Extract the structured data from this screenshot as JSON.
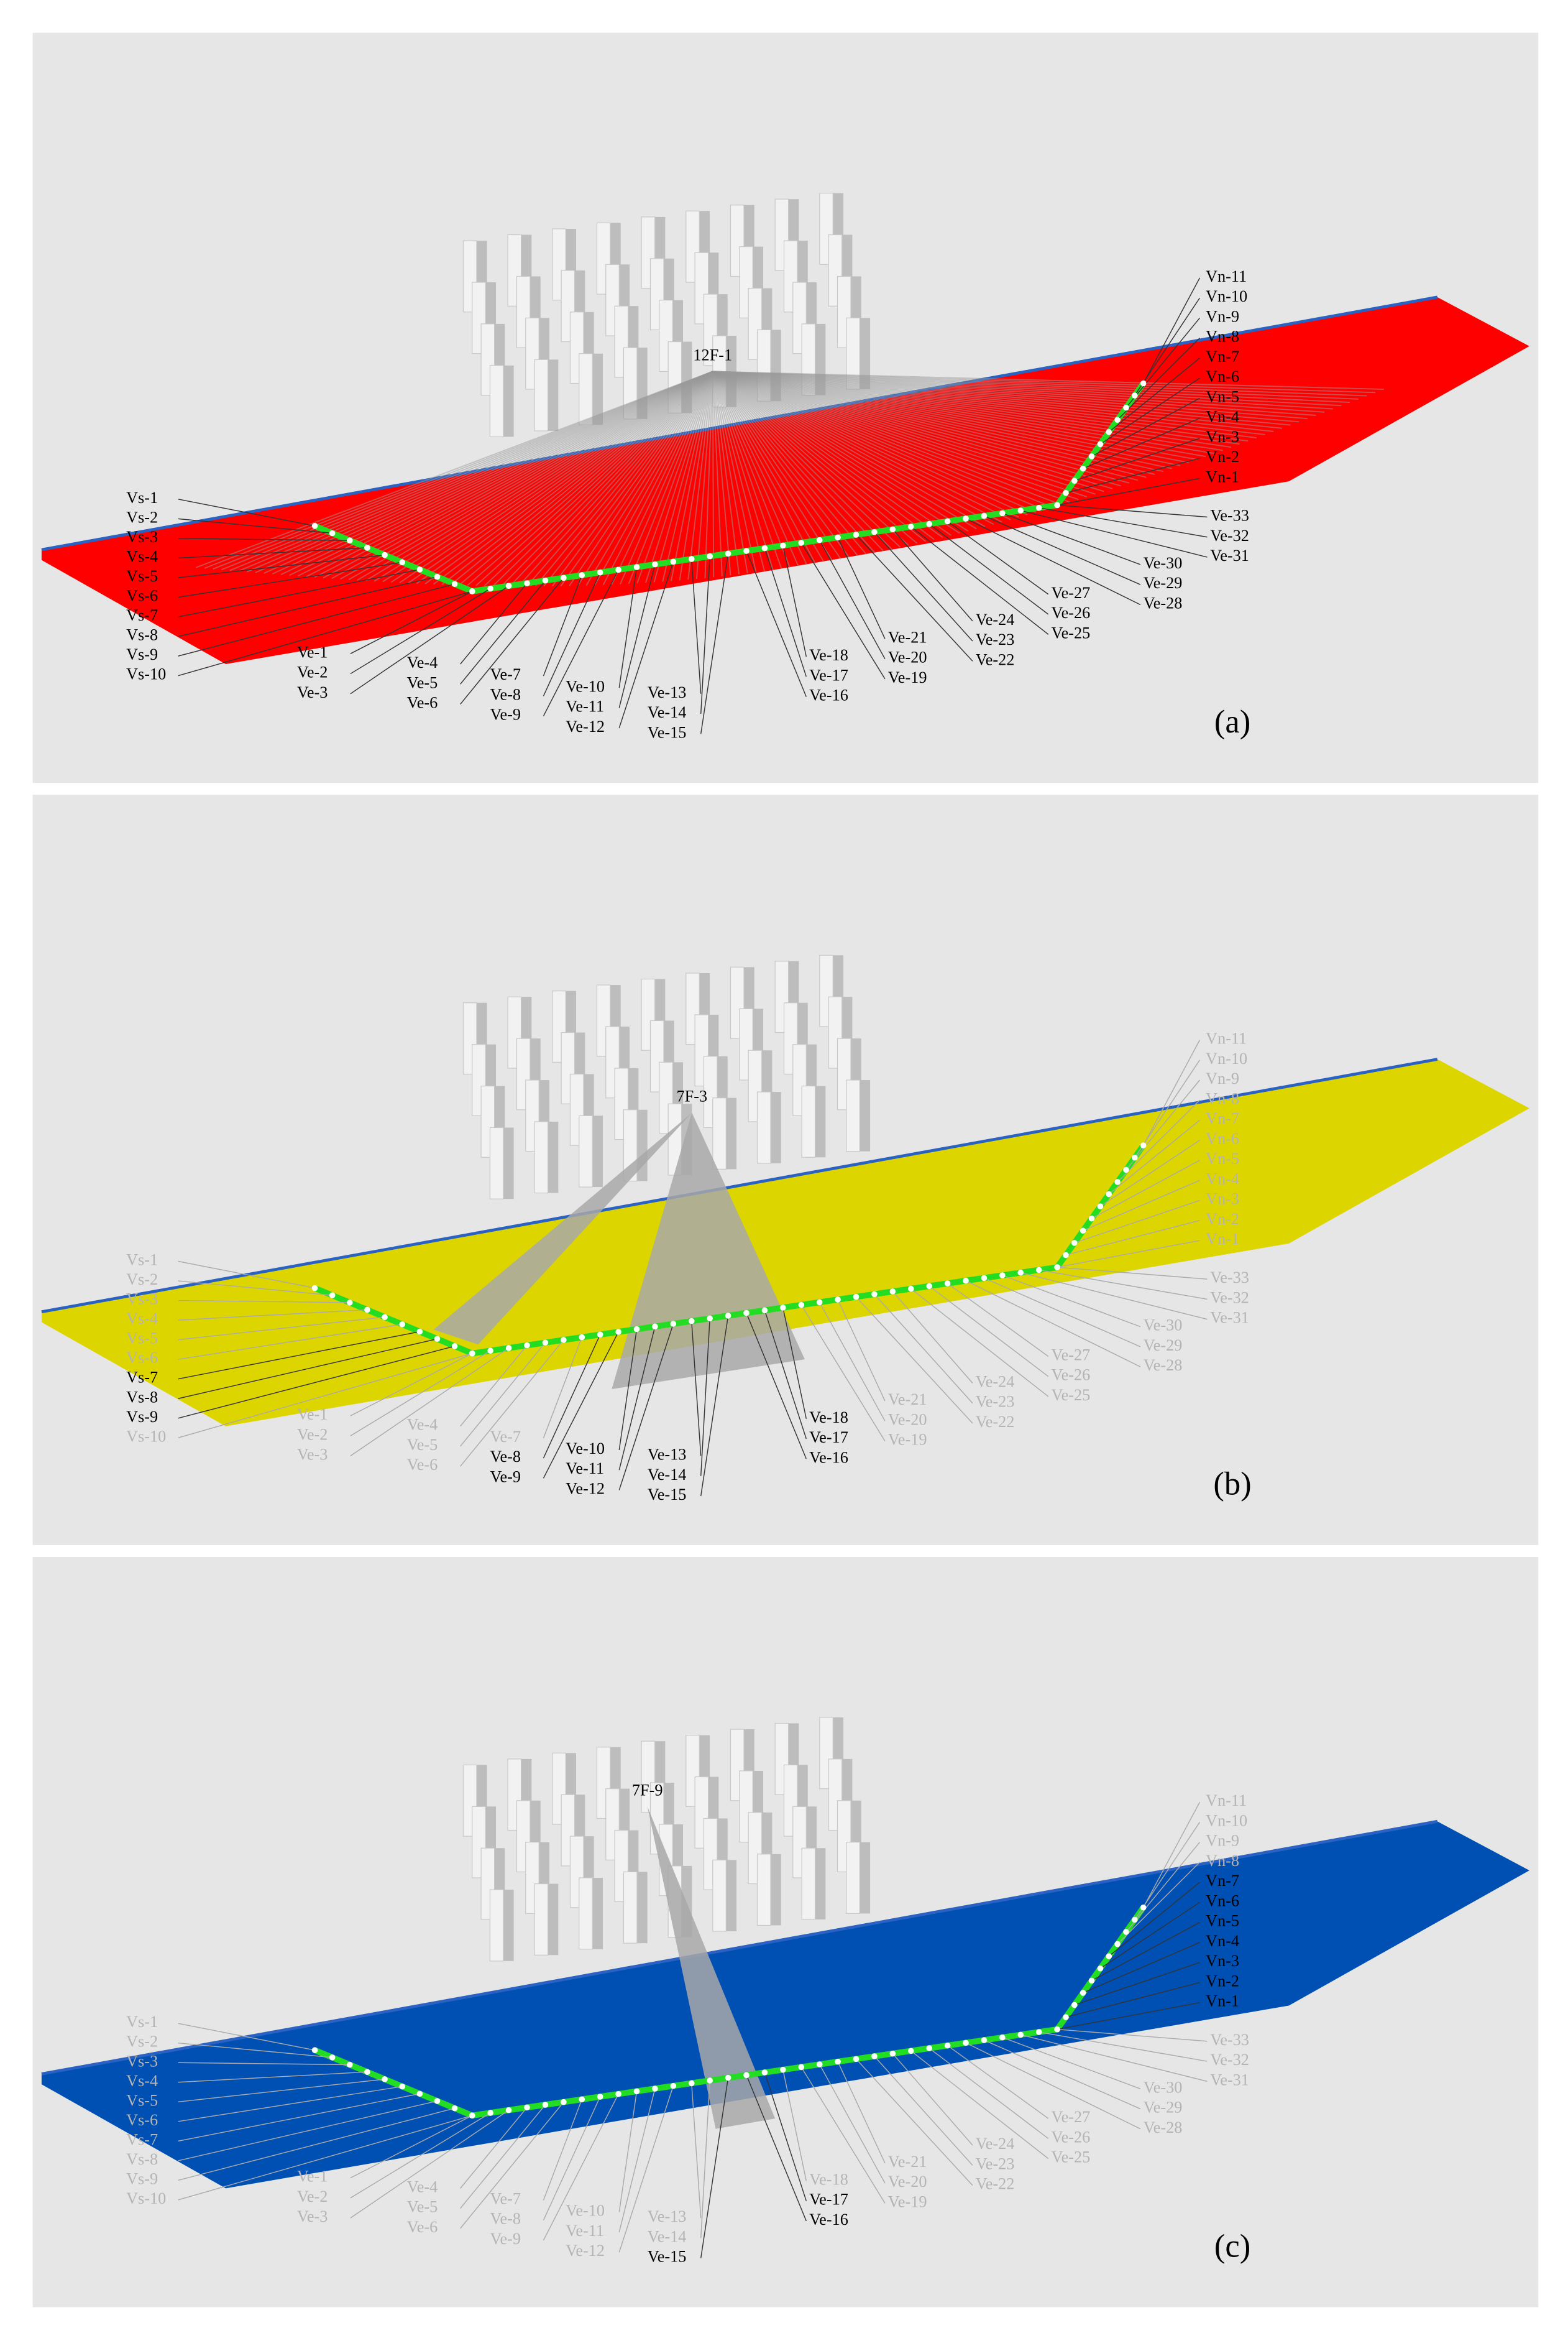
{
  "viewpoints": [
    "Vs-1",
    "Vs-2",
    "Vs-3",
    "Vs-4",
    "Vs-5",
    "Vs-6",
    "Vs-7",
    "Vs-8",
    "Vs-9",
    "Vs-10",
    "Ve-1",
    "Ve-2",
    "Ve-3",
    "Ve-4",
    "Ve-5",
    "Ve-6",
    "Ve-7",
    "Ve-8",
    "Ve-9",
    "Ve-10",
    "Ve-11",
    "Ve-12",
    "Ve-13",
    "Ve-14",
    "Ve-15",
    "Ve-16",
    "Ve-17",
    "Ve-18",
    "Ve-19",
    "Ve-20",
    "Ve-21",
    "Ve-22",
    "Ve-23",
    "Ve-24",
    "Ve-25",
    "Ve-26",
    "Ve-27",
    "Ve-28",
    "Ve-29",
    "Ve-30",
    "Ve-31",
    "Ve-32",
    "Ve-33",
    "Vn-1",
    "Vn-2",
    "Vn-3",
    "Vn-4",
    "Vn-5",
    "Vn-6",
    "Vn-7",
    "Vn-8",
    "Vn-9",
    "Vn-10",
    "Vn-11"
  ],
  "panels": [
    {
      "label": "(a)",
      "source": "12F-1",
      "surface_color": "#ff0000",
      "visible": [
        true,
        true,
        true,
        true,
        true,
        true,
        true,
        true,
        true,
        true,
        true,
        true,
        true,
        true,
        true,
        true,
        true,
        true,
        true,
        true,
        true,
        true,
        true,
        true,
        true,
        true,
        true,
        true,
        true,
        true,
        true,
        true,
        true,
        true,
        true,
        true,
        true,
        true,
        true,
        true,
        true,
        true,
        true,
        true,
        true,
        true,
        true,
        true,
        true,
        true,
        true,
        true,
        true,
        true
      ]
    },
    {
      "label": "(b)",
      "source": "7F-3",
      "surface_color": "#dcd500",
      "visible": [
        false,
        false,
        false,
        false,
        false,
        false,
        true,
        true,
        true,
        false,
        false,
        false,
        false,
        false,
        false,
        false,
        false,
        true,
        true,
        true,
        true,
        true,
        true,
        true,
        true,
        true,
        true,
        true,
        false,
        false,
        false,
        false,
        false,
        false,
        false,
        false,
        false,
        false,
        false,
        false,
        false,
        false,
        false,
        false,
        false,
        false,
        false,
        false,
        false,
        false,
        false,
        false,
        false,
        false
      ]
    },
    {
      "label": "(c)",
      "source": "7F-9",
      "surface_color": "#0050b4",
      "visible": [
        false,
        false,
        false,
        false,
        false,
        false,
        false,
        false,
        false,
        false,
        false,
        false,
        false,
        false,
        false,
        false,
        false,
        false,
        false,
        false,
        false,
        false,
        false,
        false,
        true,
        true,
        true,
        false,
        false,
        false,
        false,
        false,
        false,
        false,
        false,
        false,
        false,
        false,
        false,
        false,
        false,
        false,
        false,
        true,
        true,
        true,
        true,
        true,
        true,
        true,
        false,
        false,
        false,
        false
      ]
    }
  ]
}
